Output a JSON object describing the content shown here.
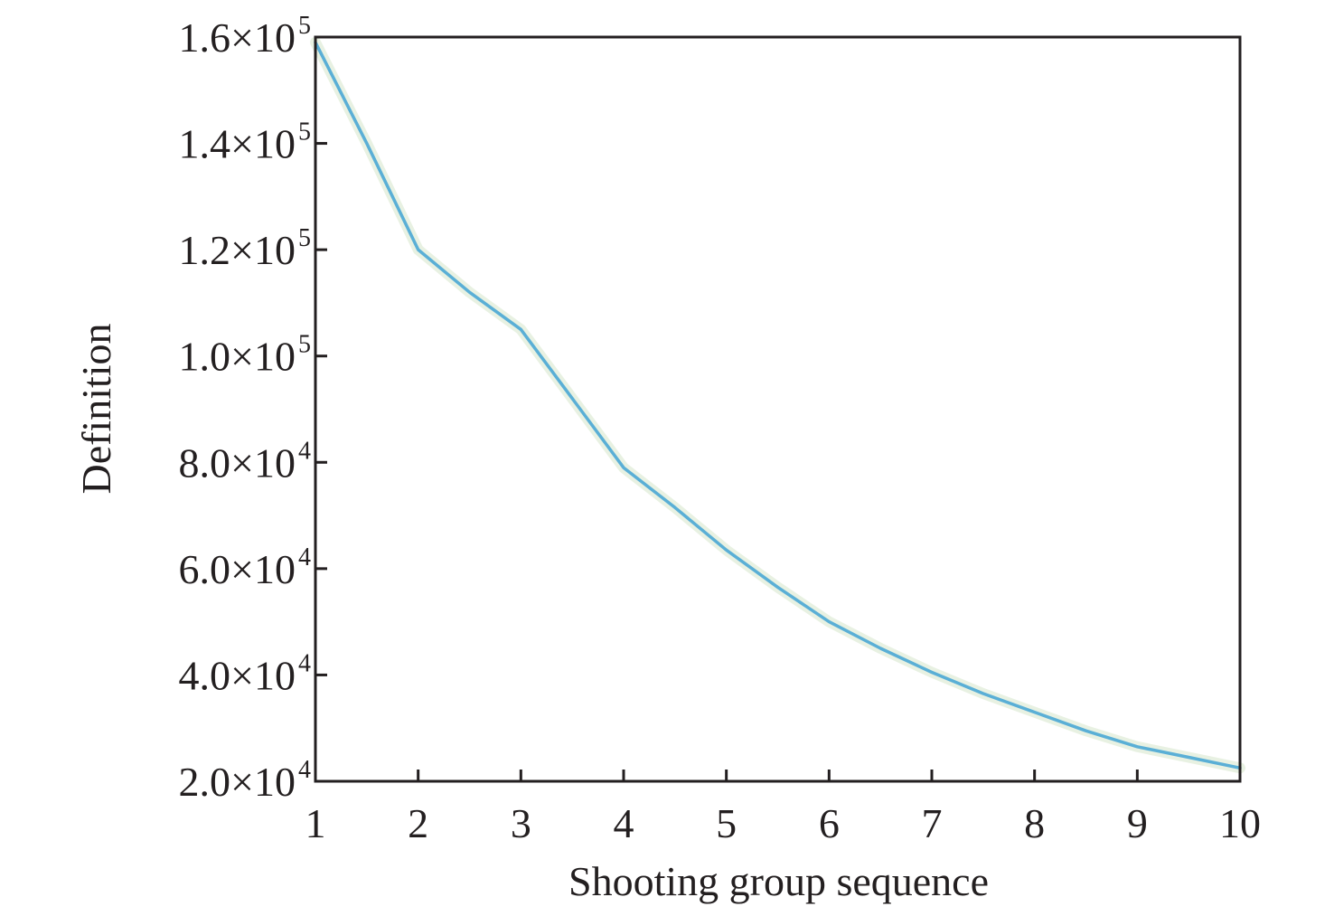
{
  "chart_data": {
    "type": "line",
    "xlabel": "Shooting group sequence",
    "ylabel": "Definition",
    "xlim": [
      1,
      10
    ],
    "ylim": [
      20000,
      160000
    ],
    "x_ticks": [
      {
        "value": 1,
        "label": "1"
      },
      {
        "value": 2,
        "label": "2"
      },
      {
        "value": 3,
        "label": "3"
      },
      {
        "value": 4,
        "label": "4"
      },
      {
        "value": 5,
        "label": "5"
      },
      {
        "value": 6,
        "label": "6"
      },
      {
        "value": 7,
        "label": "7"
      },
      {
        "value": 8,
        "label": "8"
      },
      {
        "value": 9,
        "label": "9"
      },
      {
        "value": 10,
        "label": "10"
      }
    ],
    "y_ticks": [
      {
        "value": 20000,
        "mantissa": "2.0×10",
        "exponent": "4"
      },
      {
        "value": 40000,
        "mantissa": "4.0×10",
        "exponent": "4"
      },
      {
        "value": 60000,
        "mantissa": "6.0×10",
        "exponent": "4"
      },
      {
        "value": 80000,
        "mantissa": "8.0×10",
        "exponent": "4"
      },
      {
        "value": 100000,
        "mantissa": "1.0×10",
        "exponent": "5"
      },
      {
        "value": 120000,
        "mantissa": "1.2×10",
        "exponent": "5"
      },
      {
        "value": 140000,
        "mantissa": "1.4×10",
        "exponent": "5"
      },
      {
        "value": 160000,
        "mantissa": "1.6×10",
        "exponent": "5"
      }
    ],
    "grid": false,
    "legend": "none",
    "series": [
      {
        "color": "#5aafd6",
        "x": [
          1,
          1.5,
          2,
          2.5,
          3,
          3.5,
          4,
          4.5,
          5,
          5.5,
          6,
          6.5,
          7,
          7.5,
          8,
          8.5,
          9,
          9.5,
          10
        ],
        "y": [
          159000,
          140000,
          120000,
          112000,
          105000,
          92000,
          79000,
          71500,
          63500,
          56500,
          50000,
          45000,
          40500,
          36500,
          33000,
          29500,
          26500,
          24500,
          22500
        ]
      }
    ]
  }
}
